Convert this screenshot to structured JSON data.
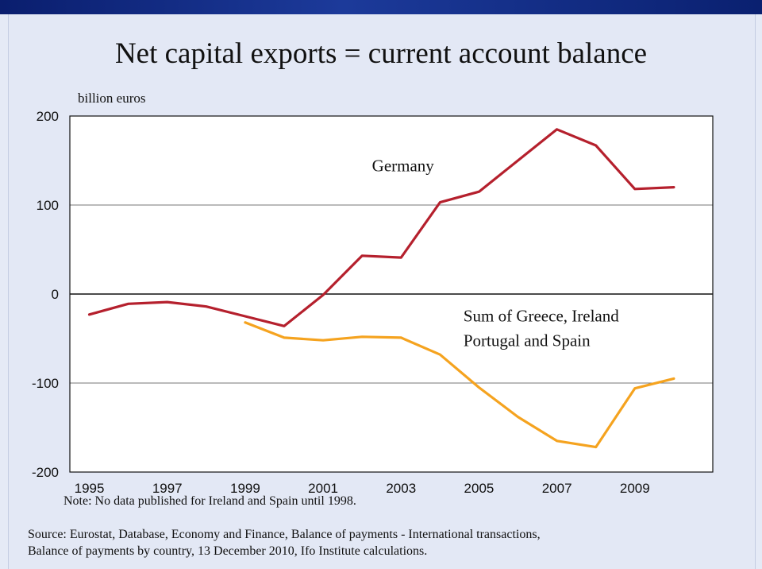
{
  "chart_data": {
    "type": "line",
    "title": "Net capital exports = current account balance",
    "ylabel": "billion euros",
    "xlabel": "",
    "ylim": [
      -200,
      200
    ],
    "xlim": [
      1994.5,
      2011
    ],
    "yticks": [
      200,
      100,
      0,
      -100,
      -200
    ],
    "ytick_labels": [
      "200",
      "100",
      "0",
      "-100",
      "-200"
    ],
    "xticks": [
      1995,
      1997,
      1999,
      2001,
      2003,
      2005,
      2007,
      2009
    ],
    "xtick_labels": [
      "1995",
      "1997",
      "1999",
      "2001",
      "2003",
      "2005",
      "2007",
      "2009"
    ],
    "grid": "horizontal",
    "series": [
      {
        "name": "Germany",
        "color": "#b5202d",
        "x": [
          1995,
          1996,
          1997,
          1998,
          1999,
          2000,
          2001,
          2002,
          2003,
          2004,
          2005,
          2006,
          2007,
          2008,
          2009,
          2010
        ],
        "y": [
          -23,
          -11,
          -9,
          -14,
          -25,
          -36,
          -1,
          43,
          41,
          103,
          115,
          150,
          185,
          167,
          118,
          120
        ]
      },
      {
        "name": "Sum of Greece, Ireland\nPortugal and Spain",
        "label_lines": [
          "Sum of Greece, Ireland",
          "Portugal and Spain"
        ],
        "color": "#f5a31f",
        "x": [
          1999,
          2000,
          2001,
          2002,
          2003,
          2004,
          2005,
          2006,
          2007,
          2008,
          2009,
          2010
        ],
        "y": [
          -32,
          -49,
          -52,
          -48,
          -49,
          -68,
          -105,
          -138,
          -165,
          -172,
          -106,
          -95
        ]
      }
    ]
  },
  "note": "Note: No data published for Ireland and Spain until 1998.",
  "source_lines": [
    "Source: Eurostat, Database, Economy and Finance, Balance of payments - International transactions,",
    "Balance of payments by country, 13 December 2010, Ifo Institute calculations."
  ]
}
